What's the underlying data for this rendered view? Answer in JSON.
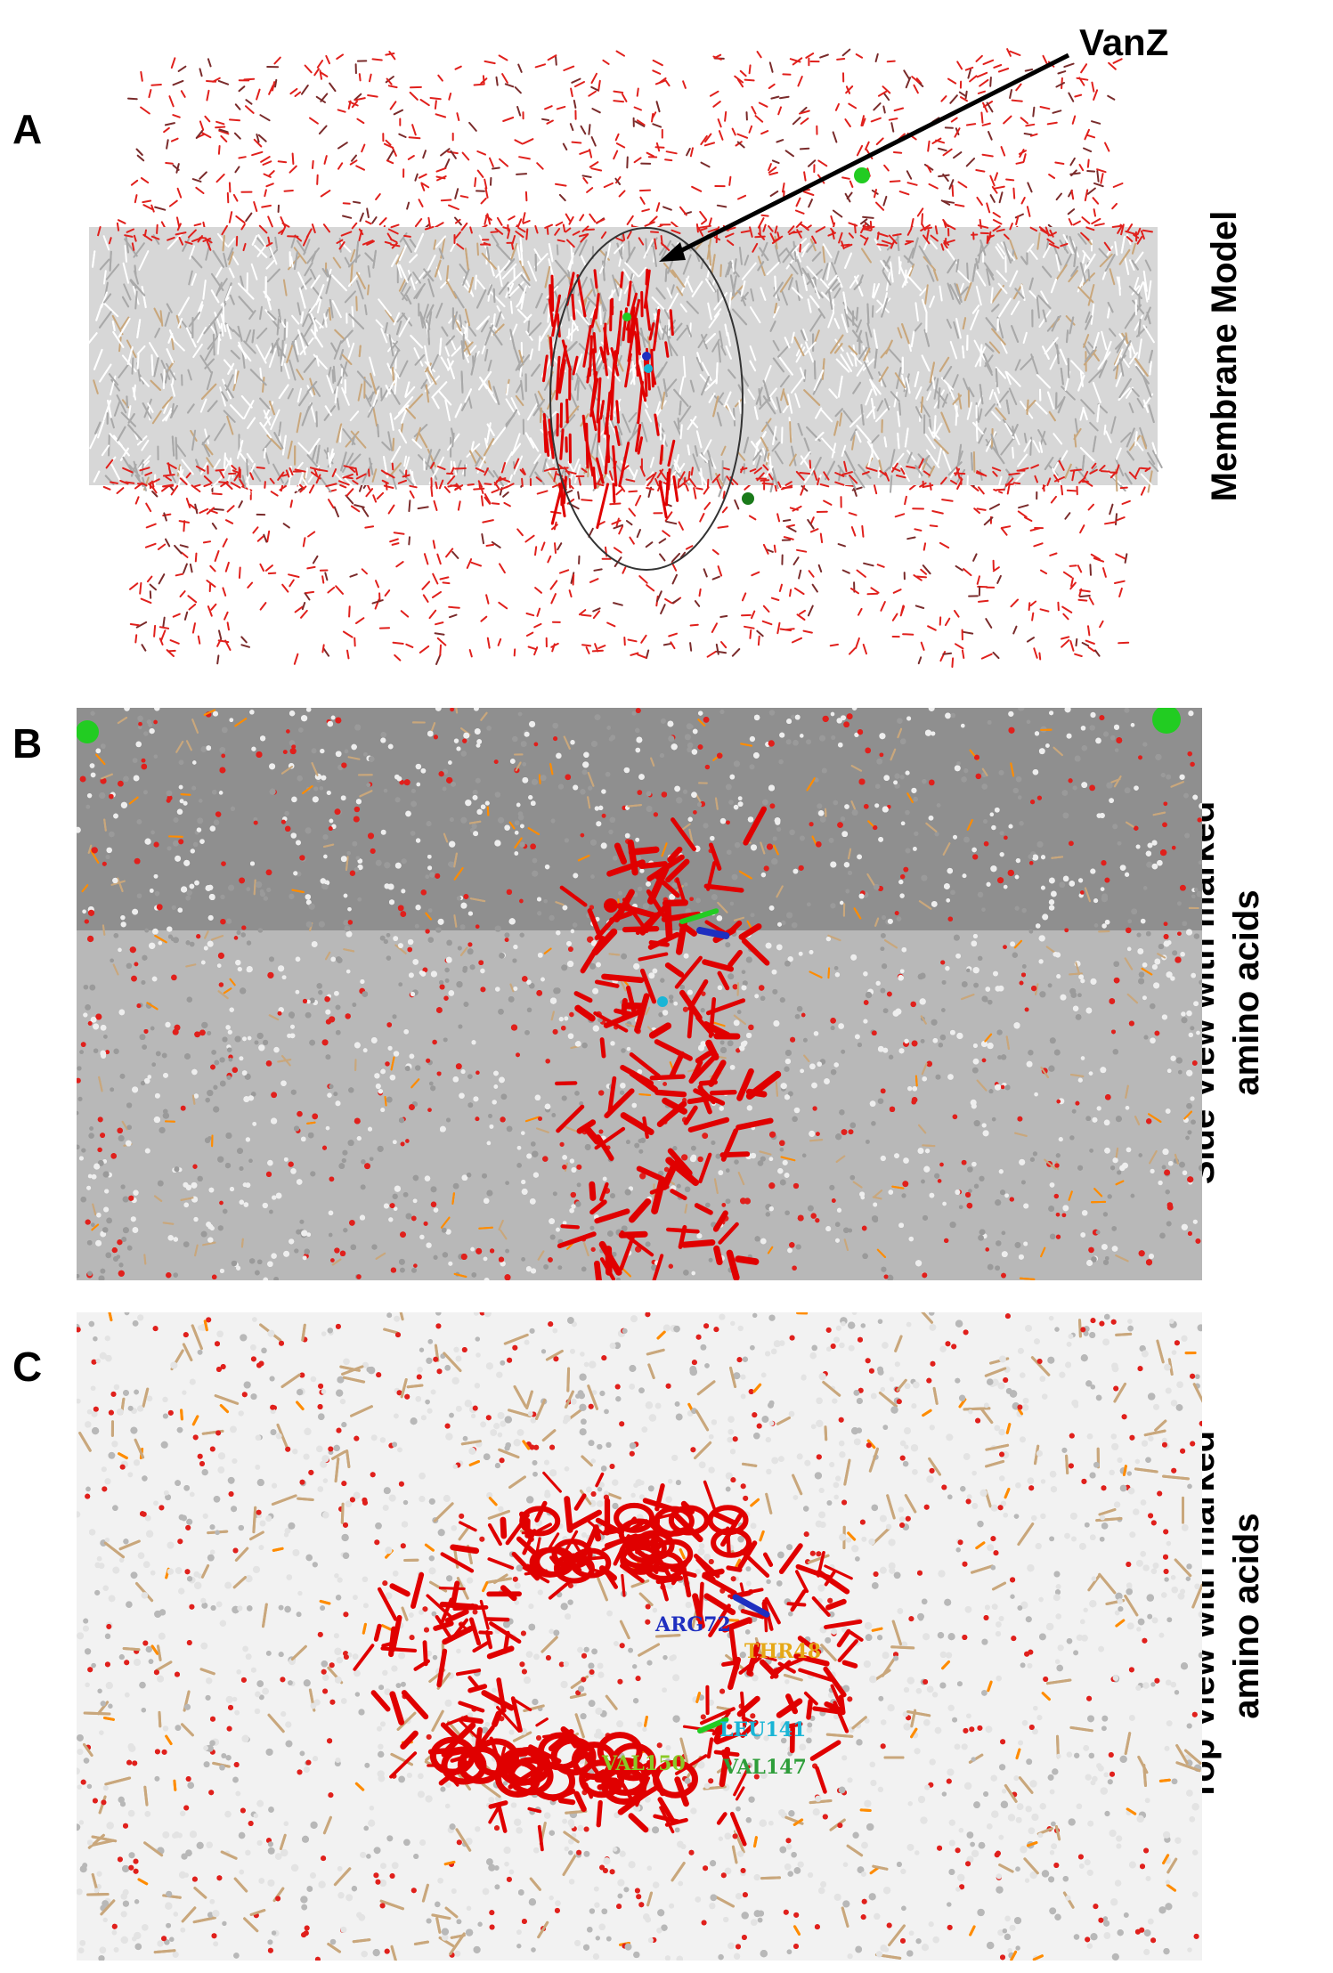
{
  "panels": [
    {
      "letter": "A",
      "side_label": [
        "Membrane Model"
      ]
    },
    {
      "letter": "B",
      "side_label": [
        "Side View with marked",
        "amino acids"
      ]
    },
    {
      "letter": "C",
      "side_label": [
        "Top View with marked",
        "amino acids"
      ]
    }
  ],
  "annotations": {
    "arrow_label": "VanZ"
  },
  "residues": [
    {
      "label": "ARG72",
      "color": "#1f2fc0"
    },
    {
      "label": "THR48",
      "color": "#e6a817"
    },
    {
      "label": "LEU141",
      "color": "#19b5d6"
    },
    {
      "label": "VAL150",
      "color": "#8ac926"
    },
    {
      "label": "VAL147",
      "color": "#2e9e3a"
    }
  ],
  "colors": {
    "lipid_tail": "#c8c8c8",
    "lipid_tan": "#c9a77c",
    "water": "#e0201c",
    "protein": "#e00000",
    "phosphate": "#ff8c00",
    "ion": "#22cc22"
  }
}
